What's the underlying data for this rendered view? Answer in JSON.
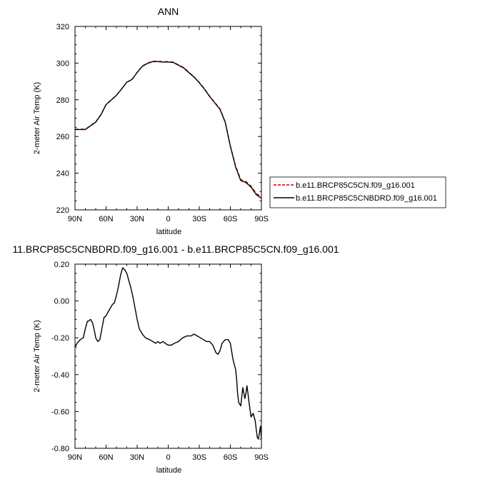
{
  "chart_data": [
    {
      "type": "line",
      "title": "ANN",
      "xlabel": "latitude",
      "ylabel": "2-meter Air Temp (K)",
      "xlim": [
        90,
        -90
      ],
      "ylim": [
        220,
        320
      ],
      "xticks": [
        90,
        60,
        30,
        0,
        -30,
        -60,
        -90
      ],
      "xtick_labels": [
        "90N",
        "60N",
        "30N",
        "0",
        "30S",
        "60S",
        "90S"
      ],
      "yticks": [
        220,
        240,
        260,
        280,
        300,
        320
      ],
      "ytick_labels": [
        "220",
        "240",
        "260",
        "280",
        "300",
        "320"
      ],
      "legend_position": "right",
      "series": [
        {
          "name": "b.e11.BRCP85C5CN.f09_g16.001",
          "color": "#d00000",
          "dash": "dashed",
          "x": [
            90,
            85,
            80,
            75,
            70,
            65,
            60,
            55,
            50,
            45,
            40,
            35,
            30,
            25,
            20,
            15,
            10,
            5,
            0,
            -5,
            -10,
            -15,
            -20,
            -25,
            -30,
            -35,
            -40,
            -45,
            -50,
            -55,
            -60,
            -65,
            -70,
            -75,
            -80,
            -85,
            -90
          ],
          "y": [
            264,
            264,
            264,
            266,
            268,
            272,
            277.5,
            280,
            282.5,
            286,
            289.5,
            291,
            295,
            298.5,
            300,
            301,
            301,
            300.8,
            300.8,
            300.5,
            299,
            297.5,
            295,
            292.5,
            289.5,
            286,
            282,
            278.5,
            275,
            268,
            255,
            244,
            236.5,
            235.5,
            233,
            229,
            227
          ]
        },
        {
          "name": "b.e11.BRCP85C5CNBDRD.f09_g16.001",
          "color": "#000000",
          "dash": "solid",
          "x": [
            90,
            85,
            80,
            75,
            70,
            65,
            60,
            55,
            50,
            45,
            40,
            35,
            30,
            25,
            20,
            15,
            10,
            5,
            0,
            -5,
            -10,
            -15,
            -20,
            -25,
            -30,
            -35,
            -40,
            -45,
            -50,
            -55,
            -60,
            -65,
            -70,
            -75,
            -80,
            -85,
            -90
          ],
          "y": [
            263.8,
            263.8,
            263.8,
            265.8,
            267.8,
            271.8,
            277.4,
            279.9,
            282.4,
            285.9,
            289.6,
            291.1,
            294.9,
            298.3,
            299.8,
            300.8,
            300.8,
            300.6,
            300.6,
            300.3,
            298.8,
            297.3,
            294.8,
            292.3,
            289.3,
            285.8,
            281.8,
            278.3,
            274.8,
            267.8,
            254.6,
            243.5,
            236,
            234.9,
            232.4,
            228.3,
            226.3
          ]
        }
      ]
    },
    {
      "type": "line",
      "title": "11.BRCP85C5CNBDRD.f09_g16.001 - b.e11.BRCP85C5CN.f09_g16.001",
      "xlabel": "latitude",
      "ylabel": "2-meter Air Temp (K)",
      "xlim": [
        90,
        -90
      ],
      "ylim": [
        -0.8,
        0.2
      ],
      "xticks": [
        90,
        60,
        30,
        0,
        -30,
        -60,
        -90
      ],
      "xtick_labels": [
        "90N",
        "60N",
        "30N",
        "0",
        "30S",
        "60S",
        "90S"
      ],
      "yticks": [
        -0.8,
        -0.6,
        -0.4,
        -0.2,
        0.0,
        0.2
      ],
      "ytick_labels": [
        "-0.80",
        "-0.60",
        "-0.40",
        "-0.20",
        "0.00",
        "0.20"
      ],
      "series": [
        {
          "color": "#000000",
          "dash": "solid",
          "x": [
            90,
            88,
            85,
            82,
            80,
            78,
            77,
            75,
            73,
            71,
            70,
            68,
            66,
            64,
            62,
            60,
            57,
            54,
            52,
            50,
            48,
            46,
            44,
            42,
            40,
            38,
            36,
            34,
            32,
            30,
            28,
            25,
            22,
            18,
            15,
            12,
            10,
            8,
            5,
            3,
            0,
            -3,
            -6,
            -10,
            -14,
            -18,
            -22,
            -25,
            -28,
            -31,
            -34,
            -37,
            -40,
            -43,
            -46,
            -48,
            -50,
            -52,
            -55,
            -58,
            -60,
            -62,
            -63,
            -65,
            -66,
            -67,
            -68,
            -70,
            -71,
            -72,
            -73,
            -74,
            -75,
            -76,
            -77,
            -78,
            -80,
            -82,
            -84,
            -85,
            -86,
            -87,
            -88,
            -89,
            -90
          ],
          "y": [
            -0.25,
            -0.23,
            -0.21,
            -0.2,
            -0.15,
            -0.11,
            -0.11,
            -0.1,
            -0.12,
            -0.17,
            -0.2,
            -0.22,
            -0.21,
            -0.15,
            -0.09,
            -0.08,
            -0.05,
            -0.02,
            -0.01,
            0.03,
            0.08,
            0.14,
            0.18,
            0.17,
            0.15,
            0.11,
            0.07,
            0.02,
            -0.04,
            -0.1,
            -0.15,
            -0.18,
            -0.2,
            -0.21,
            -0.22,
            -0.23,
            -0.22,
            -0.23,
            -0.22,
            -0.23,
            -0.24,
            -0.24,
            -0.23,
            -0.22,
            -0.2,
            -0.19,
            -0.19,
            -0.18,
            -0.19,
            -0.2,
            -0.21,
            -0.22,
            -0.22,
            -0.24,
            -0.28,
            -0.29,
            -0.27,
            -0.23,
            -0.21,
            -0.21,
            -0.23,
            -0.3,
            -0.33,
            -0.37,
            -0.42,
            -0.5,
            -0.55,
            -0.57,
            -0.52,
            -0.47,
            -0.5,
            -0.53,
            -0.5,
            -0.46,
            -0.5,
            -0.55,
            -0.63,
            -0.61,
            -0.65,
            -0.7,
            -0.74,
            -0.75,
            -0.72,
            -0.68,
            -0.75
          ]
        }
      ]
    }
  ]
}
